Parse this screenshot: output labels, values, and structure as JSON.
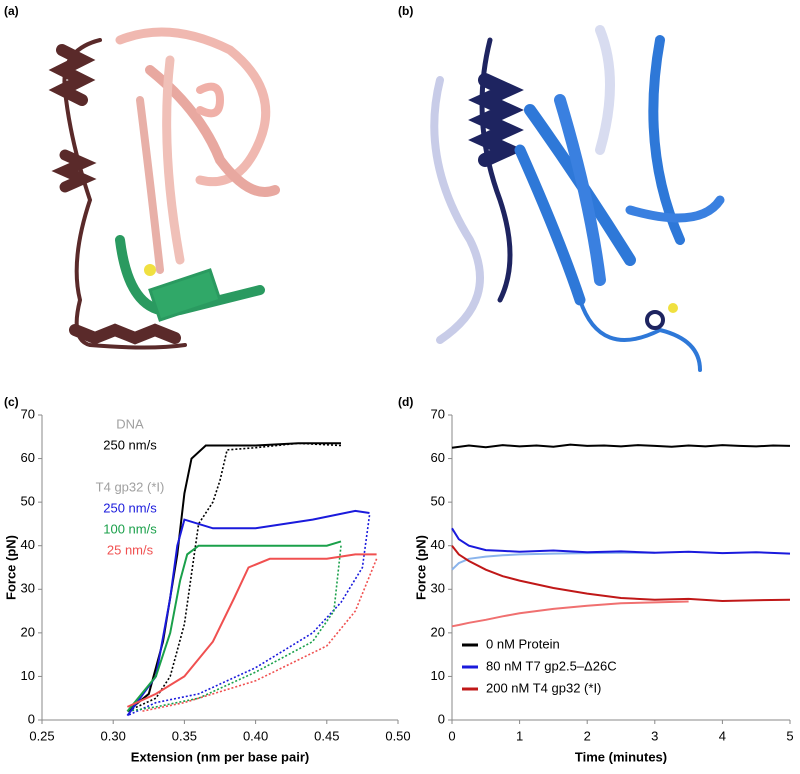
{
  "panels": {
    "a": "(a)",
    "b": "(b)"
  },
  "chart_data": [
    {
      "type": "line",
      "label": "(c)",
      "x_label": "Extension (nm per base pair)",
      "y_label": "Force (pN)",
      "xlim": [
        0.25,
        0.5
      ],
      "xticks": [
        0.25,
        {
          "value": 0.3,
          "label": "0.30"
        },
        0.35,
        {
          "value": 0.4,
          "label": "0.40"
        },
        0.45,
        {
          "value": 0.5,
          "label": "0.50"
        }
      ],
      "ylim": [
        0,
        70
      ],
      "yticks": [
        0,
        10,
        20,
        30,
        40,
        50,
        60,
        70
      ],
      "annotations": [
        {
          "text": "DNA",
          "color": "#a0a0a0"
        },
        {
          "text": "T4 gp32 (*I)",
          "color": "#a0a0a0"
        }
      ],
      "series": [
        {
          "name": "250 nm/s",
          "color": "#000000",
          "x": [
            0.31,
            0.325,
            0.335,
            0.345,
            0.35,
            0.355,
            0.365,
            0.4,
            0.43,
            0.46
          ],
          "values": [
            2,
            6,
            18,
            38,
            52,
            60,
            63,
            63,
            63.5,
            63.5
          ],
          "release": {
            "style": "dotted",
            "x": [
              0.46,
              0.43,
              0.4,
              0.38,
              0.375,
              0.37,
              0.36,
              0.35,
              0.34,
              0.33,
              0.31
            ],
            "values": [
              63,
              63.5,
              62.5,
              62,
              55,
              50,
              45,
              22,
              10,
              5,
              2
            ]
          }
        },
        {
          "name": "250 nm/s",
          "color": "#1a1adc",
          "x": [
            0.31,
            0.33,
            0.34,
            0.345,
            0.35,
            0.37,
            0.4,
            0.44,
            0.47,
            0.48
          ],
          "values": [
            1,
            10,
            28,
            40,
            46,
            44,
            44,
            46,
            48,
            47.5
          ],
          "release": {
            "style": "dotted",
            "x": [
              0.48,
              0.475,
              0.46,
              0.44,
              0.4,
              0.36,
              0.33,
              0.31
            ],
            "values": [
              47,
              35,
              27,
              20,
              12,
              6,
              4,
              1
            ]
          }
        },
        {
          "name": "100 nm/s",
          "color": "#1aa04a",
          "x": [
            0.31,
            0.33,
            0.34,
            0.347,
            0.352,
            0.36,
            0.4,
            0.45,
            0.46
          ],
          "values": [
            2,
            10,
            20,
            32,
            38,
            40,
            40,
            40,
            41
          ],
          "release": {
            "style": "dotted",
            "x": [
              0.46,
              0.455,
              0.44,
              0.4,
              0.36,
              0.33,
              0.31
            ],
            "values": [
              40,
              25,
              18,
              11,
              5,
              3,
              2
            ]
          }
        },
        {
          "name": "25 nm/s",
          "color": "#f05050",
          "x": [
            0.31,
            0.33,
            0.35,
            0.37,
            0.385,
            0.395,
            0.41,
            0.45,
            0.47,
            0.485
          ],
          "values": [
            3,
            6,
            10,
            18,
            28,
            35,
            37,
            37,
            38,
            38
          ],
          "release": {
            "style": "dotted",
            "x": [
              0.485,
              0.47,
              0.45,
              0.4,
              0.35,
              0.32
            ],
            "values": [
              37,
              25,
              17,
              9,
              4,
              2
            ]
          }
        }
      ]
    },
    {
      "type": "line",
      "label": "(d)",
      "x_label": "Time (minutes)",
      "y_label": "Force (pN)",
      "xlim": [
        0,
        5
      ],
      "xticks": [
        0,
        1,
        2,
        3,
        4,
        5
      ],
      "ylim": [
        0,
        70
      ],
      "yticks": [
        0,
        10,
        20,
        30,
        40,
        50,
        60,
        70
      ],
      "series": [
        {
          "name": "0 nM Protein",
          "color": "#000000",
          "x": [
            0,
            0.25,
            0.5,
            0.75,
            1,
            1.25,
            1.5,
            1.75,
            2,
            2.25,
            2.5,
            2.75,
            3,
            3.25,
            3.5,
            3.75,
            4,
            4.25,
            4.5,
            4.75,
            5
          ],
          "values": [
            62.5,
            63,
            62.6,
            63.1,
            62.8,
            63,
            62.7,
            63.2,
            62.9,
            63,
            62.8,
            63.1,
            62.9,
            62.7,
            63,
            62.8,
            63.1,
            62.9,
            62.8,
            63,
            62.9
          ]
        },
        {
          "name": "80 nM T7 gp2.5–Δ26C",
          "color": "#1a1adc",
          "x": [
            0,
            0.1,
            0.25,
            0.5,
            0.75,
            1,
            1.5,
            2,
            2.5,
            3,
            3.5,
            4,
            4.5,
            5
          ],
          "values": [
            44,
            41.5,
            40,
            39,
            38.8,
            38.6,
            38.9,
            38.5,
            38.7,
            38.4,
            38.6,
            38.3,
            38.5,
            38.2
          ],
          "release": {
            "color": "#8ab4ec",
            "x": [
              0,
              0.1,
              0.25,
              0.5,
              0.75,
              1,
              1.5,
              2,
              2.5,
              3
            ],
            "values": [
              34.5,
              36,
              37,
              37.5,
              37.8,
              38,
              38.2,
              38.3,
              38.4,
              38.4
            ]
          }
        },
        {
          "name": "200 nM T4 gp32 (*I)",
          "color": "#c01818",
          "x": [
            0,
            0.1,
            0.25,
            0.5,
            0.75,
            1,
            1.5,
            2,
            2.5,
            3,
            3.5,
            4,
            4.5,
            5
          ],
          "values": [
            40,
            38,
            36.5,
            34.5,
            33,
            32,
            30.3,
            29,
            28,
            27.6,
            27.8,
            27.3,
            27.5,
            27.6
          ],
          "release": {
            "color": "#f07070",
            "x": [
              0,
              0.1,
              0.25,
              0.5,
              0.75,
              1,
              1.5,
              2,
              2.5,
              3,
              3.5
            ],
            "values": [
              21.5,
              21.8,
              22.3,
              23,
              23.8,
              24.5,
              25.5,
              26.2,
              26.8,
              27,
              27.2
            ]
          }
        }
      ]
    }
  ]
}
